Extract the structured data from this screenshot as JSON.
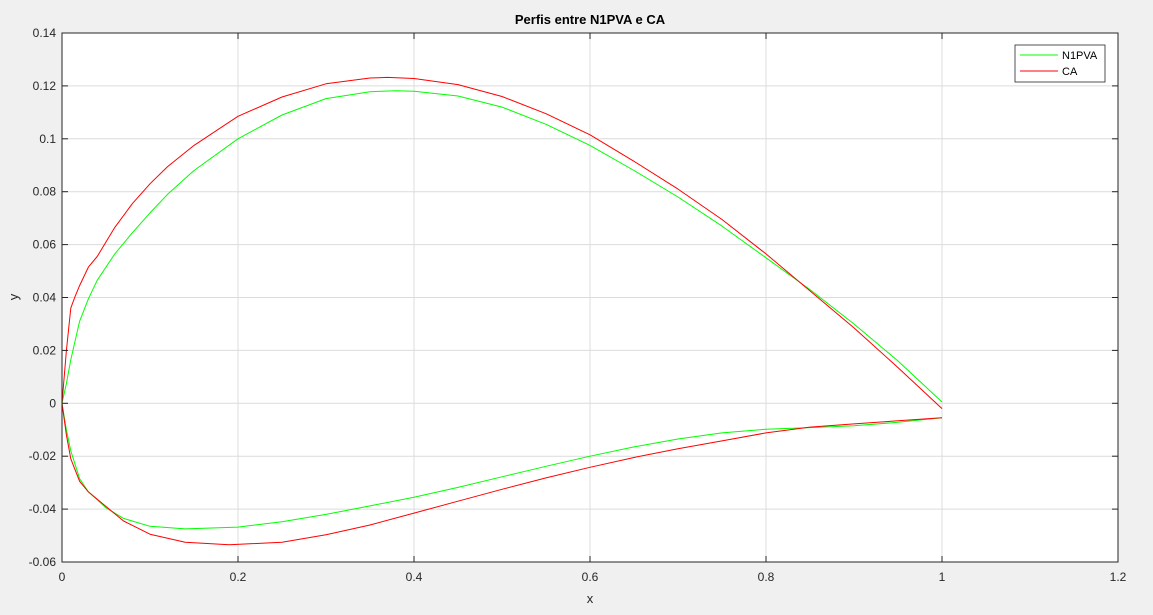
{
  "chart_data": {
    "type": "line",
    "title": "Perfis entre N1PVA e CA",
    "xlabel": "x",
    "ylabel": "y",
    "xlim": [
      0,
      1.2
    ],
    "ylim": [
      -0.06,
      0.14
    ],
    "xticks": [
      0,
      0.2,
      0.4,
      0.6,
      0.8,
      1,
      1.2
    ],
    "xtick_labels": [
      "0",
      "0.2",
      "0.4",
      "0.6",
      "0.8",
      "1",
      "1.2"
    ],
    "yticks": [
      -0.06,
      -0.04,
      -0.02,
      0,
      0.02,
      0.04,
      0.06,
      0.08,
      0.1,
      0.12,
      0.14
    ],
    "ytick_labels": [
      "-0.06",
      "-0.04",
      "-0.02",
      "0",
      "0.02",
      "0.04",
      "0.06",
      "0.08",
      "0.1",
      "0.12",
      "0.14"
    ],
    "grid": true,
    "legend_position": "top-right",
    "series": [
      {
        "name": "N1PVA",
        "color": "#00ff00",
        "x": [
          1.0,
          0.95,
          0.9,
          0.85,
          0.8,
          0.75,
          0.7,
          0.65,
          0.6,
          0.55,
          0.5,
          0.45,
          0.4,
          0.38,
          0.35,
          0.3,
          0.25,
          0.2,
          0.15,
          0.12,
          0.1,
          0.08,
          0.06,
          0.04,
          0.03,
          0.02,
          0.01,
          0.005,
          0.0,
          0.005,
          0.01,
          0.02,
          0.03,
          0.05,
          0.07,
          0.1,
          0.14,
          0.2,
          0.25,
          0.3,
          0.35,
          0.4,
          0.45,
          0.5,
          0.55,
          0.6,
          0.65,
          0.7,
          0.75,
          0.8,
          0.85,
          0.9,
          0.95,
          1.0
        ],
        "y": [
          0.0005,
          0.016,
          0.03,
          0.043,
          0.055,
          0.067,
          0.078,
          0.088,
          0.0975,
          0.1055,
          0.112,
          0.1162,
          0.118,
          0.1182,
          0.1178,
          0.1152,
          0.109,
          0.1,
          0.088,
          0.079,
          0.072,
          0.0645,
          0.0565,
          0.0465,
          0.0395,
          0.031,
          0.0165,
          0.0075,
          0.0,
          -0.01,
          -0.018,
          -0.0285,
          -0.0335,
          -0.0395,
          -0.0435,
          -0.0465,
          -0.0475,
          -0.0468,
          -0.0448,
          -0.042,
          -0.0388,
          -0.0355,
          -0.0318,
          -0.0278,
          -0.0238,
          -0.02,
          -0.0165,
          -0.0135,
          -0.0112,
          -0.0098,
          -0.0092,
          -0.0085,
          -0.0072,
          -0.0055
        ]
      },
      {
        "name": "CA",
        "color": "#ff0000",
        "x": [
          1.0,
          0.95,
          0.9,
          0.85,
          0.8,
          0.75,
          0.7,
          0.65,
          0.6,
          0.55,
          0.5,
          0.45,
          0.4,
          0.37,
          0.35,
          0.3,
          0.25,
          0.2,
          0.15,
          0.12,
          0.1,
          0.08,
          0.06,
          0.04,
          0.03,
          0.02,
          0.015,
          0.01,
          0.005,
          0.0,
          0.005,
          0.01,
          0.02,
          0.03,
          0.05,
          0.07,
          0.1,
          0.14,
          0.19,
          0.25,
          0.3,
          0.35,
          0.4,
          0.45,
          0.5,
          0.55,
          0.6,
          0.65,
          0.7,
          0.75,
          0.8,
          0.85,
          0.9,
          0.95,
          1.0
        ],
        "y": [
          -0.002,
          0.0135,
          0.0285,
          0.0425,
          0.0565,
          0.0695,
          0.081,
          0.0915,
          0.1015,
          0.1095,
          0.116,
          0.1205,
          0.1228,
          0.1232,
          0.123,
          0.1208,
          0.1158,
          0.1085,
          0.0975,
          0.0895,
          0.083,
          0.0755,
          0.0665,
          0.0555,
          0.0515,
          0.0445,
          0.0405,
          0.036,
          0.02,
          0.0,
          -0.012,
          -0.021,
          -0.0295,
          -0.0335,
          -0.039,
          -0.0445,
          -0.0495,
          -0.0525,
          -0.0535,
          -0.0525,
          -0.0497,
          -0.046,
          -0.0415,
          -0.037,
          -0.0325,
          -0.0282,
          -0.0242,
          -0.0205,
          -0.0172,
          -0.0142,
          -0.0112,
          -0.009,
          -0.0078,
          -0.0066,
          -0.0055
        ]
      }
    ]
  }
}
